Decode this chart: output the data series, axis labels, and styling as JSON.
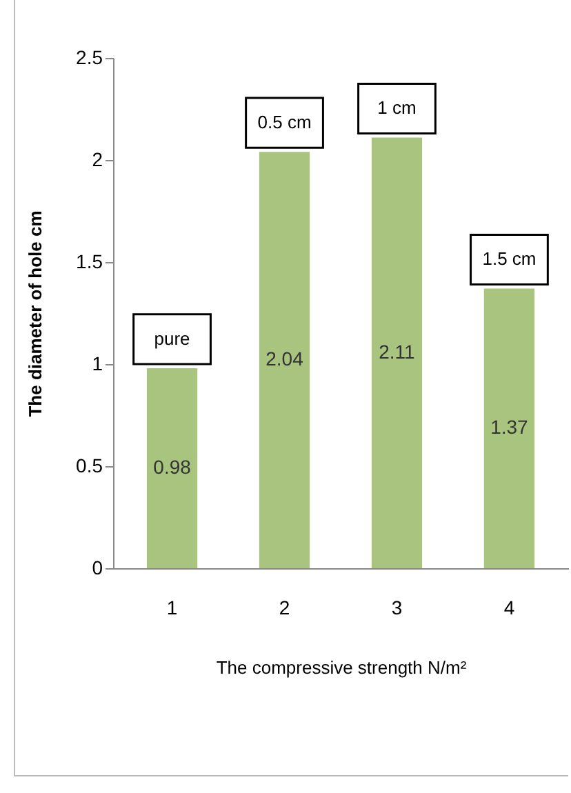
{
  "chart_data": {
    "type": "bar",
    "categories": [
      "1",
      "2",
      "3",
      "4"
    ],
    "values": [
      0.98,
      2.04,
      2.11,
      1.37
    ],
    "color": "#a9c47f",
    "ylim": [
      0,
      2.5
    ],
    "yticks": [
      0,
      0.5,
      1,
      1.5,
      2,
      2.5
    ],
    "grid": false,
    "data_labels": true,
    "xlabel": "The compressive strength N/m²",
    "ylabel": "The diameter of hole  cm",
    "annotations": [
      "pure",
      "0.5 cm",
      "1 cm",
      "1.5 cm"
    ]
  }
}
